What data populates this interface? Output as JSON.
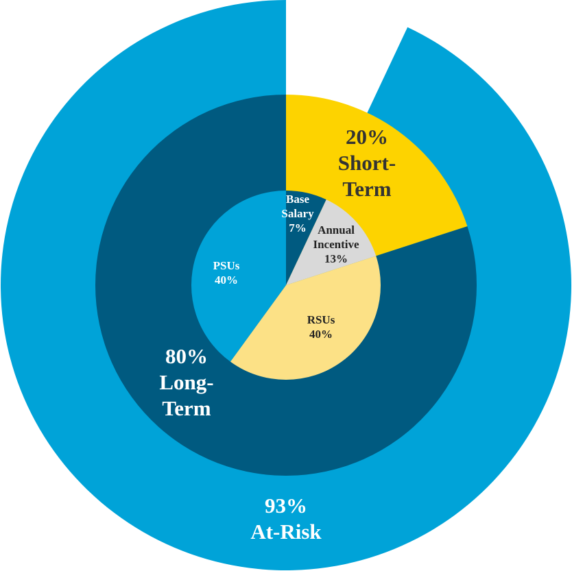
{
  "chart_data": {
    "type": "pie",
    "rings": [
      {
        "name": "outer",
        "slices": [
          {
            "label_lines": [
              "93%",
              "At-Risk"
            ],
            "value": 93,
            "color": "#00a3d8",
            "label_color": "#ffffff"
          },
          {
            "label_lines": [],
            "value": 7,
            "color": "#ffffff",
            "label_color": "#ffffff"
          }
        ]
      },
      {
        "name": "middle",
        "slices": [
          {
            "label_lines": [
              "20%",
              "Short-",
              "Term"
            ],
            "value": 20,
            "color": "#fdd300",
            "label_color": "#333333"
          },
          {
            "label_lines": [
              "80%",
              "Long-",
              "Term"
            ],
            "value": 80,
            "color": "#005a80",
            "label_color": "#ffffff"
          }
        ]
      },
      {
        "name": "inner",
        "slices": [
          {
            "label_lines": [
              "Base",
              "Salary",
              "7%"
            ],
            "value": 7,
            "color": "#005a80",
            "label_color": "#ffffff"
          },
          {
            "label_lines": [
              "Annual",
              "Incentive",
              "13%"
            ],
            "value": 13,
            "color": "#d9d9d9",
            "label_color": "#222222"
          },
          {
            "label_lines": [
              "RSUs",
              "40%"
            ],
            "value": 40,
            "color": "#fce186",
            "label_color": "#222222"
          },
          {
            "label_lines": [
              "PSUs",
              "40%"
            ],
            "value": 40,
            "color": "#00a3d8",
            "label_color": "#ffffff"
          }
        ]
      }
    ]
  }
}
